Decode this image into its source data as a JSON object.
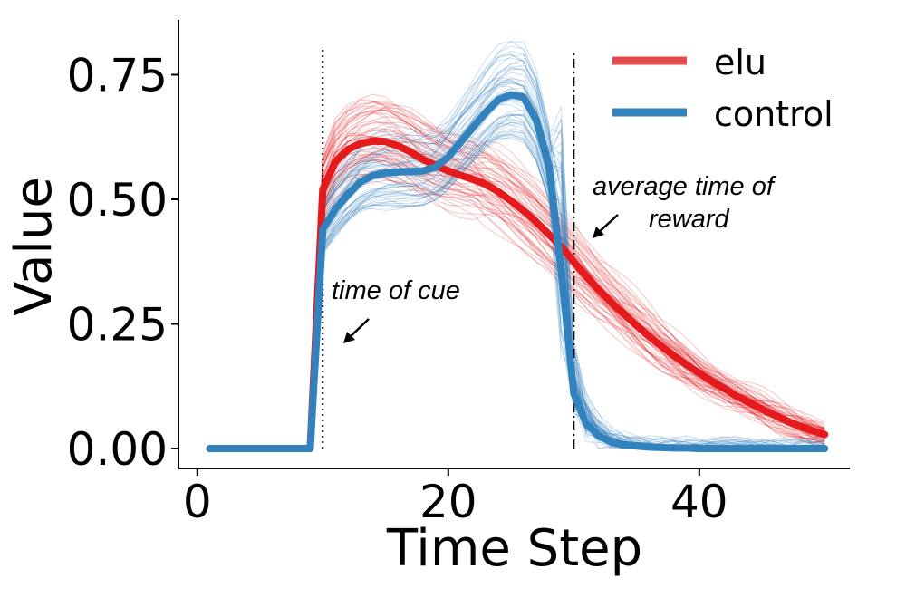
{
  "chart_data": {
    "type": "line",
    "title": "",
    "xlabel": "Time Step",
    "ylabel": "Value",
    "xlim": [
      -1.5,
      52
    ],
    "ylim": [
      -0.04,
      0.86
    ],
    "xticks": [
      0,
      20,
      40
    ],
    "xtick_labels": [
      "0",
      "20",
      "40"
    ],
    "yticks": [
      0.0,
      0.25,
      0.5,
      0.75
    ],
    "ytick_labels": [
      "0.00",
      "0.25",
      "0.50",
      "0.75"
    ],
    "x": [
      1,
      2,
      3,
      4,
      5,
      6,
      7,
      8,
      9,
      10,
      11,
      12,
      13,
      14,
      15,
      16,
      17,
      18,
      19,
      20,
      21,
      22,
      23,
      24,
      25,
      26,
      27,
      28,
      29,
      30,
      31,
      32,
      33,
      34,
      35,
      36,
      37,
      38,
      39,
      40,
      41,
      42,
      43,
      44,
      45,
      46,
      47,
      48,
      49,
      50
    ],
    "series": [
      {
        "name": "elu",
        "color": "#e41a1c",
        "values": [
          0,
          0,
          0,
          0,
          0,
          0,
          0,
          0,
          0,
          0.52,
          0.575,
          0.6,
          0.612,
          0.617,
          0.616,
          0.607,
          0.595,
          0.58,
          0.568,
          0.557,
          0.548,
          0.54,
          0.53,
          0.515,
          0.497,
          0.477,
          0.455,
          0.43,
          0.405,
          0.375,
          0.345,
          0.318,
          0.293,
          0.27,
          0.247,
          0.225,
          0.205,
          0.186,
          0.168,
          0.151,
          0.135,
          0.12,
          0.105,
          0.092,
          0.079,
          0.067,
          0.055,
          0.045,
          0.036,
          0.028
        ]
      },
      {
        "name": "control",
        "color": "#3182bd",
        "values": [
          0,
          0,
          0,
          0,
          0,
          0,
          0,
          0,
          0,
          0.44,
          0.48,
          0.51,
          0.535,
          0.548,
          0.553,
          0.555,
          0.556,
          0.557,
          0.565,
          0.585,
          0.615,
          0.645,
          0.675,
          0.7,
          0.71,
          0.705,
          0.66,
          0.57,
          0.36,
          0.11,
          0.05,
          0.025,
          0.013,
          0.008,
          0.005,
          0.003,
          0.002,
          0.001,
          0.001,
          0,
          0,
          0,
          0,
          0,
          0,
          0,
          0,
          0,
          0,
          0
        ]
      }
    ],
    "vlines": [
      {
        "name": "time of cue",
        "x": 10,
        "y_from": 0,
        "y_to": 0.8,
        "style": "dotted"
      },
      {
        "name": "average time of reward",
        "x": 30,
        "y_from": 0,
        "y_to": 0.8,
        "style": "dashdot"
      }
    ],
    "annotations": {
      "cue_text": "time of cue",
      "reward_line1": "average time of",
      "reward_line2": "reward"
    },
    "legend": {
      "position": "top-right",
      "entries": [
        "elu",
        "control"
      ]
    }
  }
}
